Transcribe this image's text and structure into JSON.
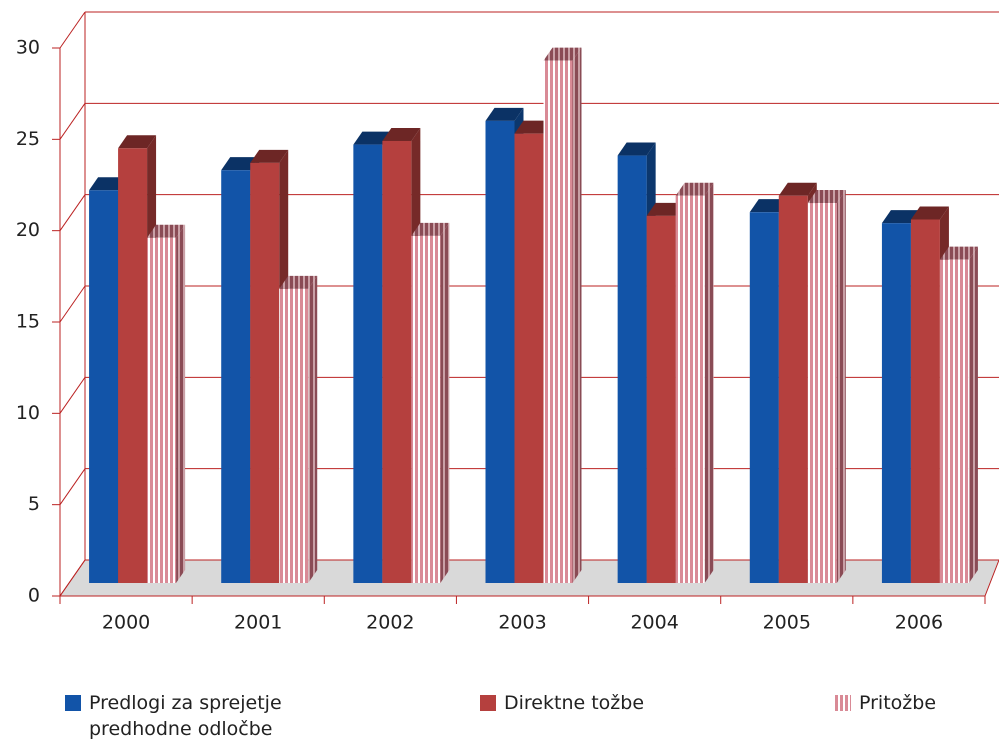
{
  "chart_data": {
    "type": "bar3d",
    "categories": [
      "2000",
      "2001",
      "2002",
      "2003",
      "2004",
      "2005",
      "2006"
    ],
    "series": [
      {
        "name": "Predlogi za sprejetje predhodne odločbe",
        "color": "#1254a8",
        "values": [
          21.5,
          22.6,
          24.0,
          25.3,
          23.4,
          20.3,
          19.7
        ]
      },
      {
        "name": "Direktne tožbe",
        "color": "#b5403e",
        "values": [
          23.8,
          23.0,
          24.2,
          24.6,
          20.1,
          21.2,
          19.9
        ]
      },
      {
        "name": "Pritožbe",
        "color": "#e6a3ad",
        "values": [
          18.9,
          16.1,
          19.0,
          28.6,
          21.2,
          20.8,
          17.7
        ]
      }
    ],
    "ylim": [
      0,
      30
    ],
    "yticks": [
      0,
      5,
      10,
      15,
      20,
      25,
      30
    ],
    "grid": true,
    "legend": "bottom"
  }
}
